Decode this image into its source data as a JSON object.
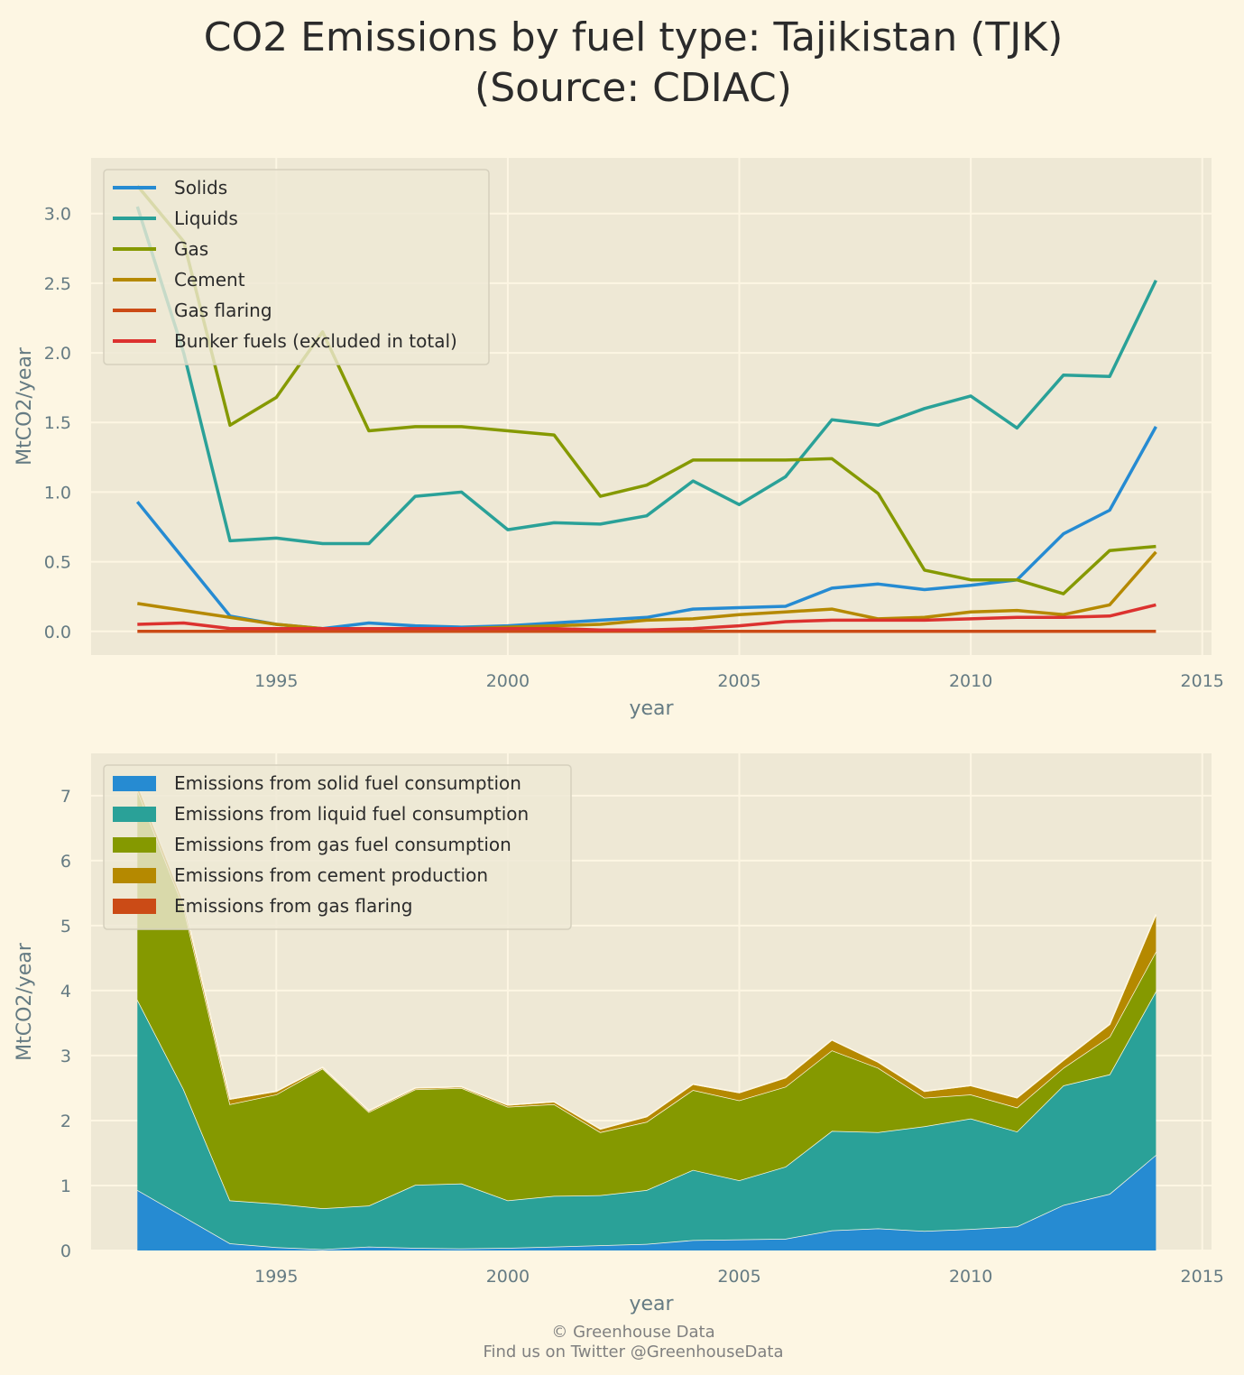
{
  "title_line1": "CO2 Emissions by fuel type: Tajikistan (TJK)",
  "title_line2": "(Source: CDIAC)",
  "footer_line1": "© Greenhouse Data",
  "footer_line2": "Find us on Twitter @GreenhouseData",
  "chart_data": [
    {
      "type": "line",
      "xlabel": "year",
      "ylabel": "MtCO2/year",
      "xlim": [
        1991,
        2015.2
      ],
      "ylim": [
        -0.17,
        3.4
      ],
      "xticks": [
        1995,
        2000,
        2005,
        2010,
        2015
      ],
      "yticks": [
        0.0,
        0.5,
        1.0,
        1.5,
        2.0,
        2.5,
        3.0
      ],
      "ytick_labels": [
        "0.0",
        "0.5",
        "1.0",
        "1.5",
        "2.0",
        "2.5",
        "3.0"
      ],
      "grid": true,
      "legend_placement": "top-left",
      "x": [
        1992,
        1993,
        1994,
        1995,
        1996,
        1997,
        1998,
        1999,
        2000,
        2001,
        2002,
        2003,
        2004,
        2005,
        2006,
        2007,
        2008,
        2009,
        2010,
        2011,
        2012,
        2013,
        2014
      ],
      "series": [
        {
          "name": "Solids",
          "color": "#268bd2",
          "values": [
            0.93,
            0.52,
            0.11,
            0.05,
            0.02,
            0.06,
            0.04,
            0.03,
            0.04,
            0.06,
            0.08,
            0.1,
            0.16,
            0.17,
            0.18,
            0.31,
            0.34,
            0.3,
            0.33,
            0.37,
            0.7,
            0.87,
            1.47
          ]
        },
        {
          "name": "Liquids",
          "color": "#2aa198",
          "values": [
            3.05,
            2.0,
            0.65,
            0.67,
            0.63,
            0.63,
            0.97,
            1.0,
            0.73,
            0.78,
            0.77,
            0.83,
            1.08,
            0.91,
            1.11,
            1.52,
            1.48,
            1.6,
            1.69,
            1.46,
            1.84,
            1.83,
            2.52
          ]
        },
        {
          "name": "Gas",
          "color": "#859900",
          "values": [
            3.2,
            2.8,
            1.48,
            1.68,
            2.15,
            1.44,
            1.47,
            1.47,
            1.44,
            1.41,
            0.97,
            1.05,
            1.23,
            1.23,
            1.23,
            1.24,
            0.99,
            0.44,
            0.37,
            0.37,
            0.27,
            0.58,
            0.61
          ]
        },
        {
          "name": "Cement",
          "color": "#b58900",
          "values": [
            0.2,
            0.15,
            0.1,
            0.05,
            0.02,
            0.02,
            0.02,
            0.02,
            0.03,
            0.04,
            0.05,
            0.08,
            0.09,
            0.12,
            0.14,
            0.16,
            0.09,
            0.1,
            0.14,
            0.15,
            0.12,
            0.19,
            0.57
          ]
        },
        {
          "name": "Gas flaring",
          "color": "#cb4b16",
          "values": [
            0,
            0,
            0,
            0,
            0,
            0,
            0,
            0,
            0,
            0,
            0,
            0,
            0,
            0,
            0,
            0,
            0,
            0,
            0,
            0,
            0,
            0,
            0
          ]
        },
        {
          "name": "Bunker fuels (excluded in total)",
          "color": "#dc322f",
          "values": [
            0.05,
            0.06,
            0.02,
            0.02,
            0.02,
            0.02,
            0.02,
            0.02,
            0.02,
            0.02,
            0.01,
            0.01,
            0.02,
            0.04,
            0.07,
            0.08,
            0.08,
            0.08,
            0.09,
            0.1,
            0.1,
            0.11,
            0.19
          ]
        }
      ]
    },
    {
      "type": "area",
      "stacked": true,
      "xlabel": "year",
      "ylabel": "MtCO2/year",
      "xlim": [
        1991,
        2015.2
      ],
      "ylim": [
        0,
        7.65
      ],
      "xticks": [
        1995,
        2000,
        2005,
        2010,
        2015
      ],
      "yticks": [
        0,
        1,
        2,
        3,
        4,
        5,
        6,
        7
      ],
      "ytick_labels": [
        "0",
        "1",
        "2",
        "3",
        "4",
        "5",
        "6",
        "7"
      ],
      "grid": true,
      "legend_placement": "top-left",
      "x": [
        1992,
        1993,
        1994,
        1995,
        1996,
        1997,
        1998,
        1999,
        2000,
        2001,
        2002,
        2003,
        2004,
        2005,
        2006,
        2007,
        2008,
        2009,
        2010,
        2011,
        2012,
        2013,
        2014
      ],
      "series": [
        {
          "name": "Emissions from solid fuel consumption",
          "color": "#268bd2",
          "values": [
            0.93,
            0.52,
            0.11,
            0.05,
            0.02,
            0.06,
            0.04,
            0.03,
            0.04,
            0.06,
            0.08,
            0.1,
            0.16,
            0.17,
            0.18,
            0.31,
            0.34,
            0.3,
            0.33,
            0.37,
            0.7,
            0.87,
            1.47
          ]
        },
        {
          "name": "Emissions from liquid fuel consumption",
          "color": "#2aa198",
          "values": [
            2.93,
            1.96,
            0.66,
            0.67,
            0.63,
            0.63,
            0.97,
            1.0,
            0.73,
            0.78,
            0.77,
            0.83,
            1.08,
            0.91,
            1.11,
            1.53,
            1.48,
            1.61,
            1.7,
            1.46,
            1.84,
            1.84,
            2.52
          ]
        },
        {
          "name": "Emissions from gas fuel consumption",
          "color": "#859900",
          "values": [
            3.22,
            2.8,
            1.48,
            1.68,
            2.15,
            1.44,
            1.47,
            1.47,
            1.44,
            1.41,
            0.97,
            1.05,
            1.23,
            1.23,
            1.23,
            1.24,
            0.99,
            0.44,
            0.37,
            0.37,
            0.27,
            0.58,
            0.61
          ]
        },
        {
          "name": "Emissions from cement production",
          "color": "#b58900",
          "values": [
            0.1,
            0.08,
            0.08,
            0.05,
            0.02,
            0.02,
            0.02,
            0.02,
            0.03,
            0.04,
            0.05,
            0.08,
            0.09,
            0.12,
            0.14,
            0.16,
            0.09,
            0.1,
            0.14,
            0.15,
            0.12,
            0.19,
            0.57
          ]
        },
        {
          "name": "Emissions from gas flaring",
          "color": "#cb4b16",
          "values": [
            0,
            0,
            0,
            0,
            0,
            0,
            0,
            0,
            0,
            0,
            0,
            0,
            0,
            0,
            0,
            0,
            0,
            0,
            0,
            0,
            0,
            0,
            0
          ]
        }
      ]
    }
  ]
}
